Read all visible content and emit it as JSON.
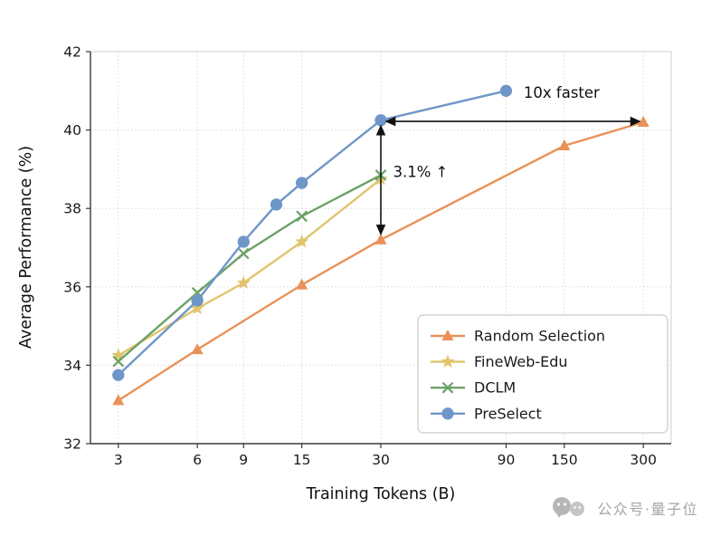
{
  "chart_data": {
    "type": "line",
    "title": "",
    "xlabel": "Training Tokens (B)",
    "ylabel": "Average Performance (%)",
    "x_scale": "log",
    "xlim": [
      2.35,
      383
    ],
    "ylim": [
      32,
      42
    ],
    "x_ticks": [
      3,
      6,
      9,
      15,
      30,
      90,
      150,
      300
    ],
    "y_ticks": [
      32,
      34,
      36,
      38,
      40,
      42
    ],
    "grid": true,
    "legend_position": "lower right",
    "series": [
      {
        "name": "Random Selection",
        "color": "#EA9158",
        "marker": "triangle",
        "x": [
          3,
          6,
          15,
          30,
          150,
          300
        ],
        "y": [
          33.1,
          34.4,
          36.05,
          37.2,
          39.6,
          40.2
        ]
      },
      {
        "name": "FineWeb-Edu",
        "color": "#E2C46D",
        "marker": "star",
        "x": [
          3,
          6,
          9,
          15,
          30
        ],
        "y": [
          34.25,
          35.45,
          36.1,
          37.15,
          38.75
        ]
      },
      {
        "name": "DCLM",
        "color": "#6BA266",
        "marker": "x",
        "x": [
          3,
          6,
          9,
          15,
          30
        ],
        "y": [
          34.1,
          35.85,
          36.85,
          37.8,
          38.85
        ]
      },
      {
        "name": "PreSelect",
        "color": "#6E96C8",
        "marker": "circle",
        "x": [
          3,
          6,
          9,
          12,
          15,
          30,
          90
        ],
        "y": [
          33.75,
          35.65,
          37.15,
          38.1,
          38.65,
          40.25,
          41.0
        ]
      }
    ],
    "annotations": [
      {
        "text": "10x faster",
        "arrow": "horizontal",
        "x1": 31.5,
        "x2": 290,
        "y": 40.22,
        "label_x": 105,
        "label_y": 40.82
      },
      {
        "text": "3.1% ↑",
        "arrow": "vertical",
        "x": 30,
        "y1": 37.35,
        "y2": 40.1,
        "label_x": 33.4,
        "label_y": 38.8
      }
    ]
  },
  "watermark": {
    "text": "公众号·量子位"
  }
}
